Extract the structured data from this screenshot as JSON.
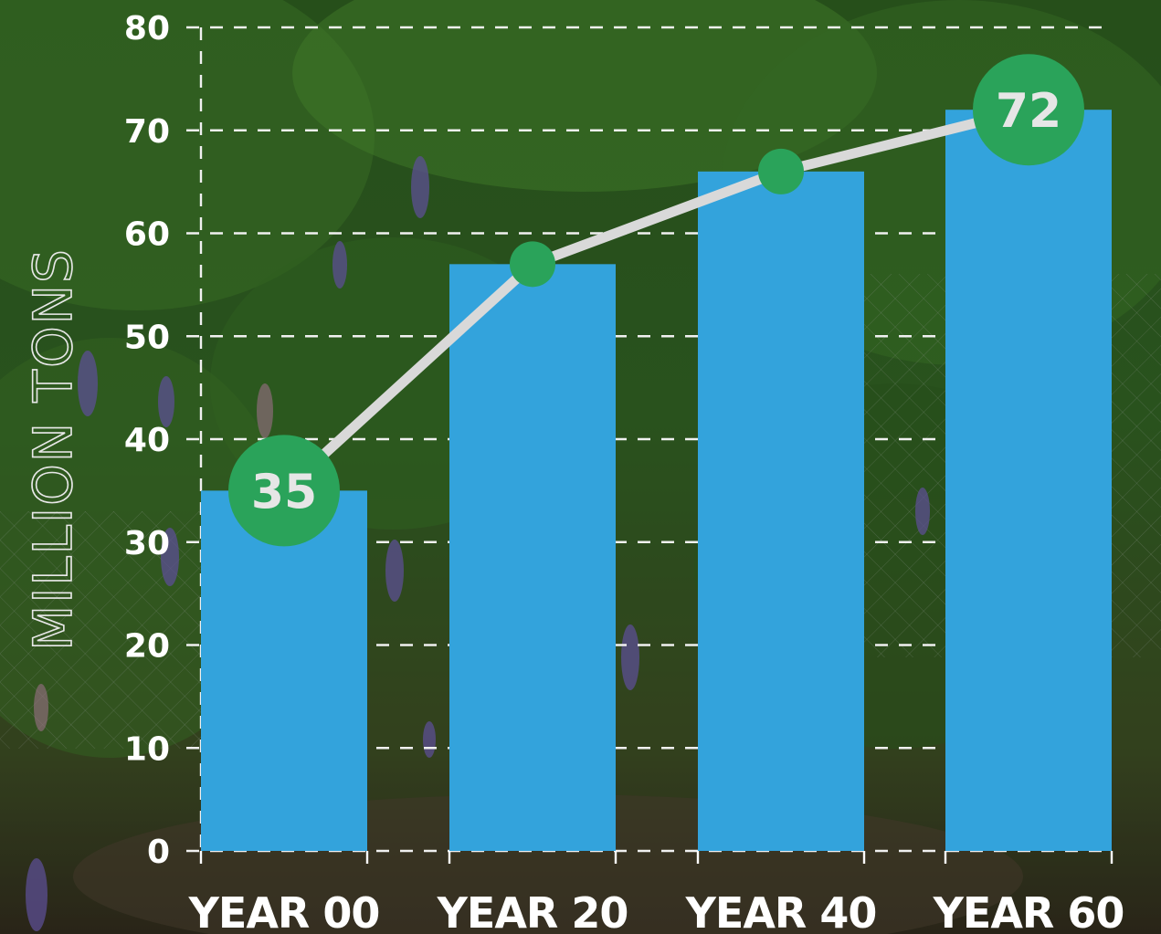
{
  "chart_data": {
    "type": "bar",
    "categories": [
      "YEAR 00",
      "YEAR 20",
      "YEAR 40",
      "YEAR 60"
    ],
    "values": [
      35,
      57,
      66,
      72
    ],
    "line_values": [
      35,
      57,
      66,
      72
    ],
    "data_labels": [
      "35",
      "",
      "",
      "72"
    ],
    "ylabel": "MILLION TONS",
    "ylim": [
      0,
      80
    ],
    "yticks": [
      "0",
      "10",
      "20",
      "30",
      "40",
      "50",
      "60",
      "70",
      "80"
    ],
    "grid": true,
    "colors": {
      "bar": "#33a3dc",
      "line": "#d9d9d9",
      "marker": "#2aa35a",
      "grid": "#f0f0f0"
    },
    "background": "photo of green foliage with purple lupine flowers"
  }
}
